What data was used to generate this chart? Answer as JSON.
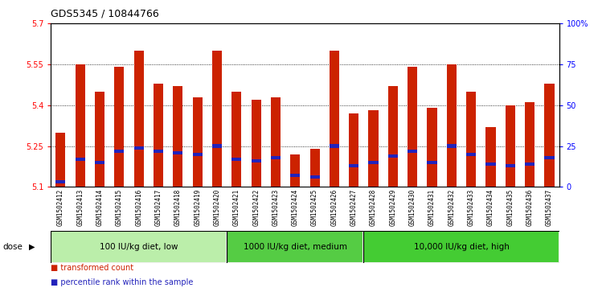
{
  "title": "GDS5345 / 10844766",
  "samples": [
    "GSM1502412",
    "GSM1502413",
    "GSM1502414",
    "GSM1502415",
    "GSM1502416",
    "GSM1502417",
    "GSM1502418",
    "GSM1502419",
    "GSM1502420",
    "GSM1502421",
    "GSM1502422",
    "GSM1502423",
    "GSM1502424",
    "GSM1502425",
    "GSM1502426",
    "GSM1502427",
    "GSM1502428",
    "GSM1502429",
    "GSM1502430",
    "GSM1502431",
    "GSM1502432",
    "GSM1502433",
    "GSM1502434",
    "GSM1502435",
    "GSM1502436",
    "GSM1502437"
  ],
  "transformed_count": [
    5.3,
    5.55,
    5.45,
    5.54,
    5.6,
    5.48,
    5.47,
    5.43,
    5.6,
    5.45,
    5.42,
    5.43,
    5.22,
    5.24,
    5.6,
    5.37,
    5.38,
    5.47,
    5.54,
    5.39,
    5.55,
    5.45,
    5.32,
    5.4,
    5.41,
    5.48
  ],
  "percentile_rank": [
    3,
    17,
    15,
    22,
    24,
    22,
    21,
    20,
    25,
    17,
    16,
    18,
    7,
    6,
    25,
    13,
    15,
    19,
    22,
    15,
    25,
    20,
    14,
    13,
    14,
    18
  ],
  "ymin": 5.1,
  "ymax": 5.7,
  "yticks": [
    5.1,
    5.25,
    5.4,
    5.55,
    5.7
  ],
  "ytick_labels": [
    "5.1",
    "5.25",
    "5.4",
    "5.55",
    "5.7"
  ],
  "right_yticks": [
    0,
    25,
    50,
    75,
    100
  ],
  "right_ytick_labels": [
    "0",
    "25",
    "50",
    "75",
    "100%"
  ],
  "bar_color": "#CC2200",
  "blue_color": "#2222BB",
  "plot_bg_color": "#FFFFFF",
  "xtick_bg_color": "#CCCCCC",
  "groups": [
    {
      "label": "100 IU/kg diet, low",
      "start": 0,
      "end": 8,
      "color": "#BBEEAA"
    },
    {
      "label": "1000 IU/kg diet, medium",
      "start": 9,
      "end": 15,
      "color": "#55CC44"
    },
    {
      "label": "10,000 IU/kg diet, high",
      "start": 16,
      "end": 25,
      "color": "#44CC33"
    }
  ],
  "dose_label": "dose",
  "legend_items": [
    {
      "label": "transformed count",
      "color": "#CC2200"
    },
    {
      "label": "percentile rank within the sample",
      "color": "#2222BB"
    }
  ],
  "fig_bg_color": "#FFFFFF"
}
